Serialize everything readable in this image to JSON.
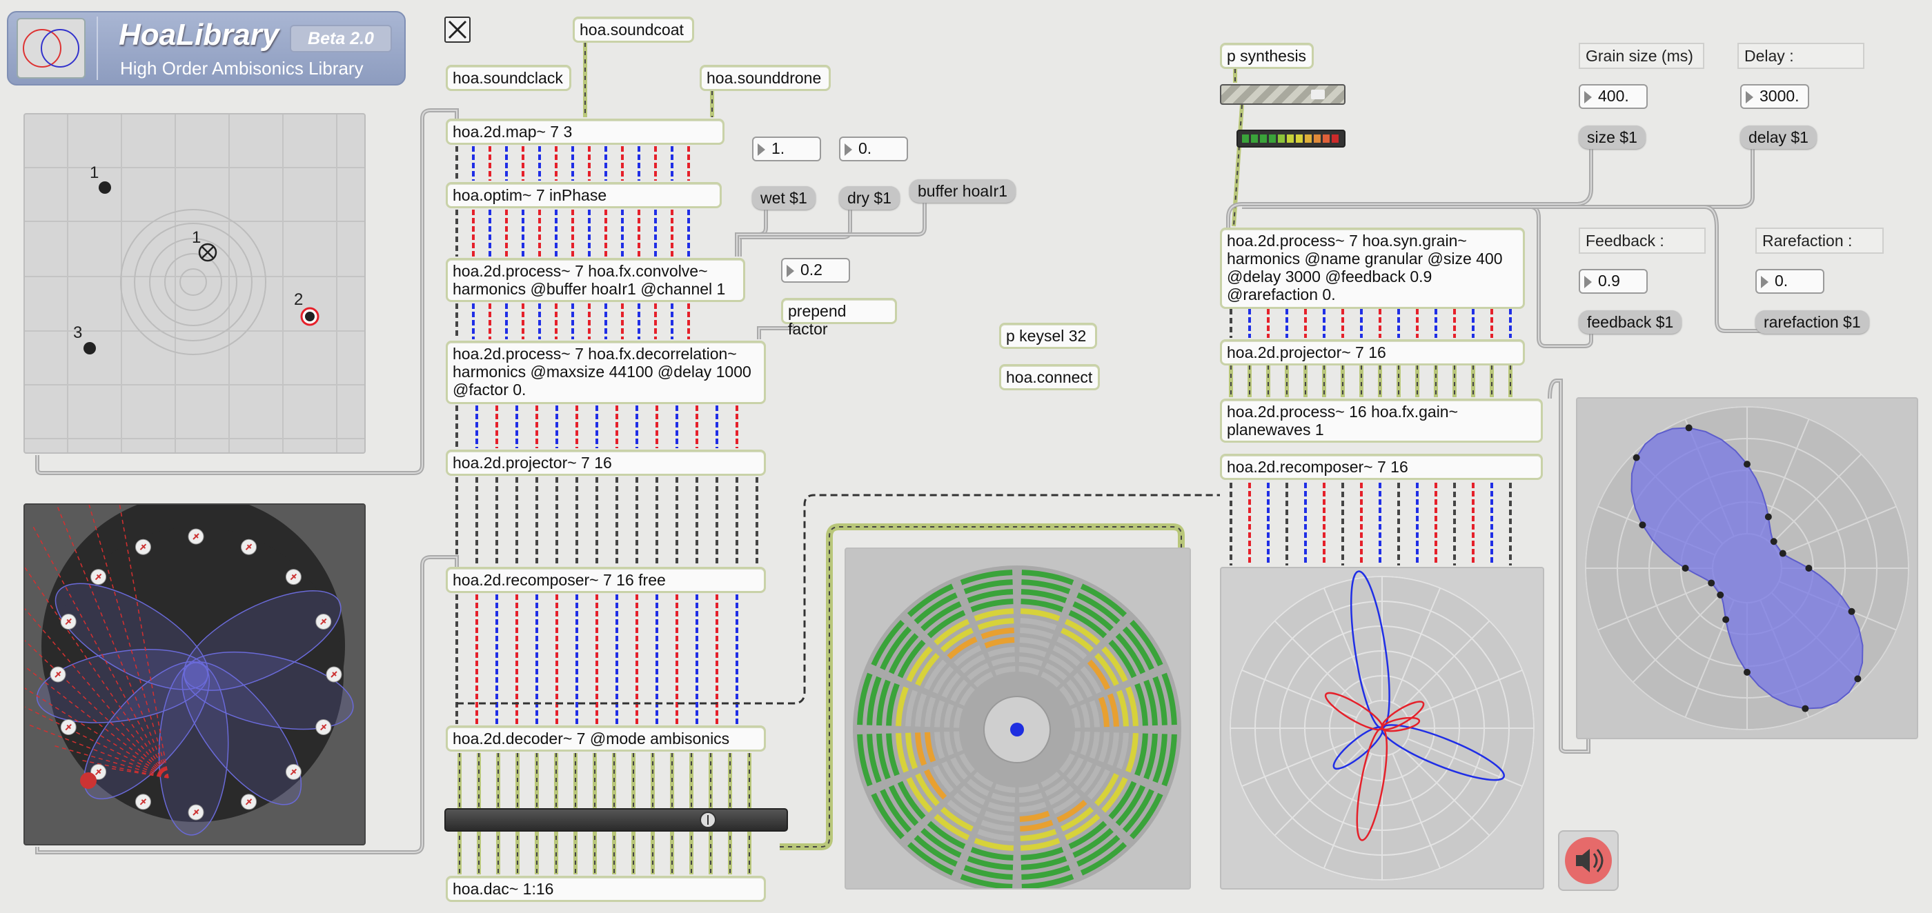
{
  "header": {
    "title": "HoaLibrary",
    "badge": "Beta 2.0",
    "subtitle": "High Order Ambisonics Library"
  },
  "map_panel": {
    "source_labels": [
      "1",
      "2",
      "3",
      "1"
    ]
  },
  "objects": {
    "soundcoat": "hoa.soundcoat",
    "soundclack": "hoa.soundclack",
    "sounddrone": "hoa.sounddrone",
    "map": "hoa.2d.map~ 7 3",
    "optim": "hoa.optim~ 7 inPhase",
    "convolve": "hoa.2d.process~ 7 hoa.fx.convolve~\nharmonics @buffer hoaIr1 @channel 1",
    "decorrelation": "hoa.2d.process~ 7 hoa.fx.decorrelation~\nharmonics @maxsize 44100 @delay 1000\n@factor 0.",
    "projector_left": "hoa.2d.projector~ 7 16",
    "recomposer_free": "hoa.2d.recomposer~ 7 16 free",
    "decoder": "hoa.2d.decoder~ 7 @mode ambisonics",
    "dac": "hoa.dac~ 1:16",
    "keysel": "p keysel 32",
    "connect": "hoa.connect",
    "synthesis": "p synthesis",
    "grain": "hoa.2d.process~ 7 hoa.syn.grain~\nharmonics @name granular @size 400\n@delay 3000 @feedback 0.9\n@rarefaction 0.",
    "projector_right": "hoa.2d.projector~ 7 16",
    "gain": "hoa.2d.process~ 16 hoa.fx.gain~\nplanewaves 1",
    "recomposer_right": "hoa.2d.recomposer~ 7 16"
  },
  "messages": {
    "wet": "wet $1",
    "dry": "dry $1",
    "buffer": "buffer hoaIr1",
    "prepend": "prepend factor",
    "size": "size $1",
    "delay": "delay $1",
    "feedback": "feedback $1",
    "rarefaction": "rarefaction $1"
  },
  "numbers": {
    "wet": "1.",
    "dry": "0.",
    "factor": "0.2",
    "grain_size": "400.",
    "delay": "3000.",
    "feedback": "0.9",
    "rarefaction": "0."
  },
  "comments": {
    "grain_size": "Grain size (ms)",
    "delay": "Delay :",
    "feedback": "Feedback :",
    "rarefaction": "Rarefaction :"
  },
  "colors": {
    "patch_bg": "#e9e9e7",
    "object_border": "#c9d2a8",
    "harmonic_blue": "#1f2ee6",
    "harmonic_red": "#e5202a",
    "meter_green": "#3aa33a",
    "meter_yellow": "#d7d23a",
    "meter_orange": "#e8a030",
    "scope_fill": "#8c8ce6"
  },
  "icons": {
    "toggle": "toggle-x-icon",
    "speaker": "speaker-icon",
    "logo": "hoa-logo-icon"
  }
}
